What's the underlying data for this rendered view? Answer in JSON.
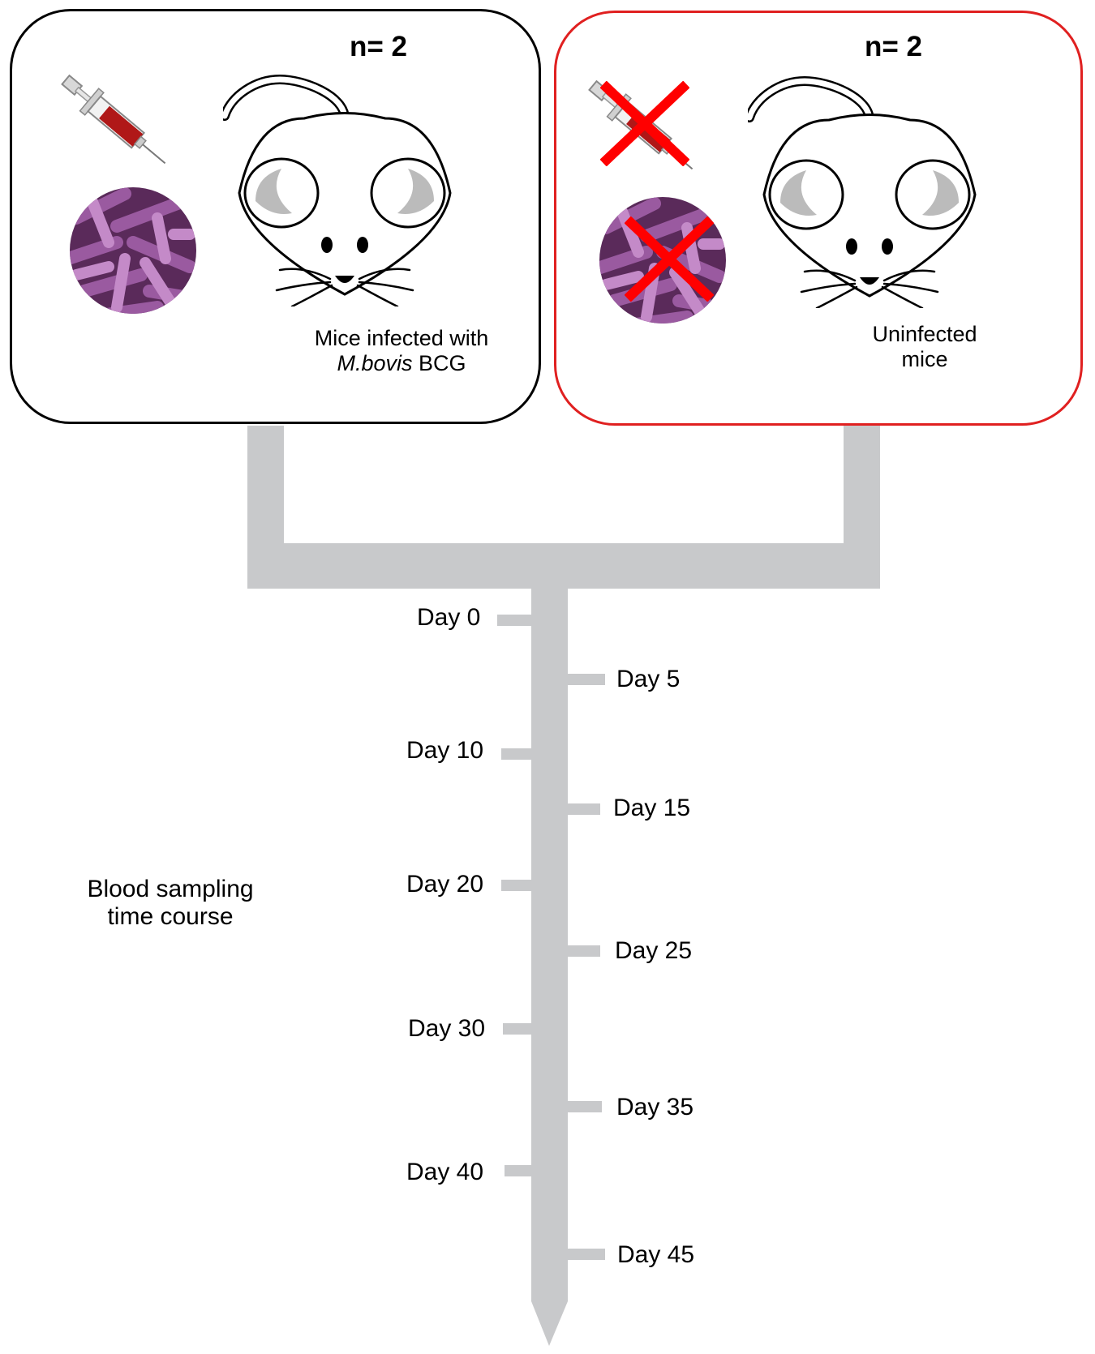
{
  "groups": {
    "infected": {
      "n_label": "n= 2",
      "caption_line1": "Mice infected with",
      "caption_species": "M.bovis",
      "caption_strain": "BCG",
      "border_color": "#000000"
    },
    "uninfected": {
      "n_label": "n= 2",
      "caption_line1": "Uninfected",
      "caption_line2": "mice",
      "border_color": "#e02020"
    }
  },
  "timeline": {
    "title_line1": "Blood sampling",
    "title_line2": "time course",
    "color": "#c8c9cb",
    "days": [
      "Day 0",
      "Day 5",
      "Day 10",
      "Day 15",
      "Day 20",
      "Day 25",
      "Day 30",
      "Day 35",
      "Day 40",
      "Day 45"
    ]
  },
  "icons": {
    "syringe": "syringe-icon",
    "bacteria": "bacteria-icon",
    "mouse": "mouse-icon",
    "cross": "red-cross-icon"
  }
}
